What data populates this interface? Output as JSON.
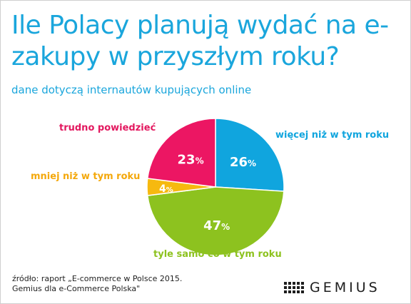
{
  "title": "Ile Polacy planują wydać na e-zakupy w przyszłym roku?",
  "subtitle": "dane dotyczą internautów kupujących online",
  "chart_data": {
    "type": "pie",
    "title": "Ile Polacy planują wydać na e-zakupy w przyszłym roku?",
    "subtitle": "dane dotyczą internautów kupujących online",
    "slices": [
      {
        "label": "więcej niż w tym roku",
        "value": 26,
        "display": "26",
        "color": "#10a5de",
        "text_color": "#10a5de"
      },
      {
        "label": "tyle samo co w tym roku",
        "value": 47,
        "display": "47",
        "color": "#8dc21f",
        "text_color": "#8dc21f"
      },
      {
        "label": "mniej niż w tym roku",
        "value": 4,
        "display": "4",
        "color": "#f6b90f",
        "text_color": "#f4a80b"
      },
      {
        "label": "trudno powiedzieć",
        "value": 23,
        "display": "23",
        "color": "#ec1663",
        "text_color": "#e3185f"
      }
    ],
    "percent_sign": "%"
  },
  "source": {
    "line1": "źródło: raport „E-commerce w Polsce 2015.",
    "line2": "Gemius dla e-Commerce Polska\""
  },
  "logo": {
    "text": "GEMIUS"
  }
}
